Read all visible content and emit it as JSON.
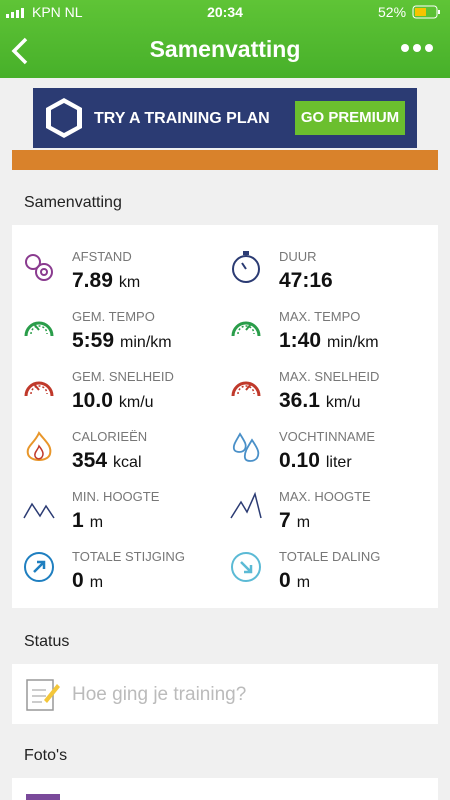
{
  "status_bar": {
    "carrier": "KPN NL",
    "time": "20:34",
    "battery": "52%"
  },
  "header": {
    "title": "Samenvatting"
  },
  "banner": {
    "text": "TRY A TRAINING PLAN",
    "button": "GO PREMIUM"
  },
  "summary": {
    "title": "Samenvatting",
    "stats": [
      {
        "label": "AFSTAND",
        "value": "7.89",
        "unit": "km"
      },
      {
        "label": "DUUR",
        "value": "47:16"
      },
      {
        "label": "GEM. TEMPO",
        "value": "5:59",
        "unit": "min/km"
      },
      {
        "label": "MAX. TEMPO",
        "value": "1:40",
        "unit": "min/km"
      },
      {
        "label": "GEM. SNELHEID",
        "value": "10.0",
        "unit": "km/u"
      },
      {
        "label": "MAX. SNELHEID",
        "value": "36.1",
        "unit": "km/u"
      },
      {
        "label": "CALORIEËN",
        "value": "354",
        "unit": "kcal"
      },
      {
        "label": "VOCHTINNAME",
        "value": "0.10",
        "unit": "liter"
      },
      {
        "label": "MIN. HOOGTE",
        "value": "1",
        "unit": "m"
      },
      {
        "label": "MAX. HOOGTE",
        "value": "7",
        "unit": "m"
      },
      {
        "label": "TOTALE STIJGING",
        "value": "0",
        "unit": "m"
      },
      {
        "label": "TOTALE DALING",
        "value": "0",
        "unit": "m"
      }
    ]
  },
  "status": {
    "title": "Status",
    "placeholder": "Hoe ging je training?"
  },
  "photos": {
    "title": "Foto's"
  }
}
